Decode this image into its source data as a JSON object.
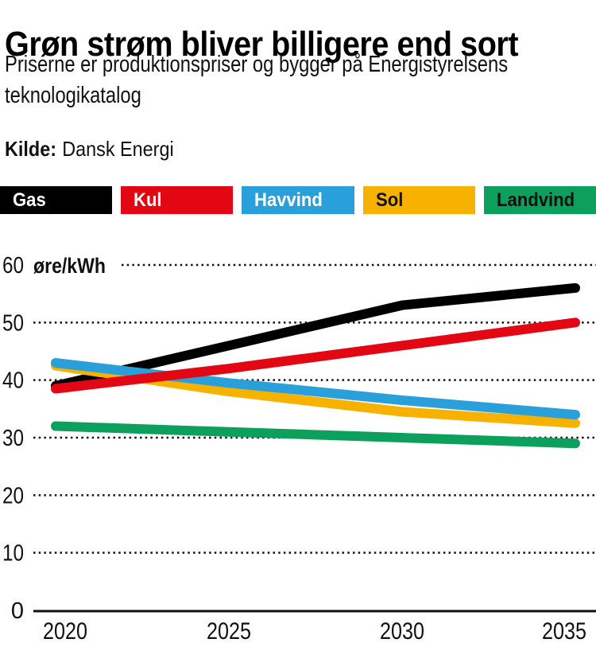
{
  "header": {
    "title": "Grøn strøm bliver billigere end sort",
    "subtitle_line1": "Priserne er produktionspriser og bygger på Energistyrelsens",
    "subtitle_line2": "teknologikatalog",
    "source_label": "Kilde:",
    "source_value": "Dansk Energi"
  },
  "legend": [
    {
      "label": "Gas",
      "color": "#000000",
      "text_color": "#ffffff"
    },
    {
      "label": "Kul",
      "color": "#e30613",
      "text_color": "#ffffff"
    },
    {
      "label": "Havvind",
      "color": "#29a0d9",
      "text_color": "#ffffff"
    },
    {
      "label": "Sol",
      "color": "#f7b200",
      "text_color": "#111111"
    },
    {
      "label": "Landvind",
      "color": "#0ca05c",
      "text_color": "#111111"
    }
  ],
  "chart_data": {
    "type": "line",
    "x": [
      2020,
      2025,
      2030,
      2035
    ],
    "categories": [
      "2020",
      "2025",
      "2030",
      "2035"
    ],
    "unit_label": "øre/kWh",
    "series": [
      {
        "name": "Gas",
        "color": "#000000",
        "values": [
          39,
          46,
          53,
          56
        ]
      },
      {
        "name": "Kul",
        "color": "#e30613",
        "values": [
          38.5,
          42,
          46,
          50
        ]
      },
      {
        "name": "Havvind",
        "color": "#29a0d9",
        "values": [
          43,
          39.5,
          36.5,
          34
        ]
      },
      {
        "name": "Sol",
        "color": "#f7b200",
        "values": [
          42.5,
          38,
          34.5,
          32.5
        ]
      },
      {
        "name": "Landvind",
        "color": "#0ca05c",
        "values": [
          32,
          31,
          30,
          29
        ]
      }
    ],
    "ylim": [
      0,
      60
    ],
    "yticks": [
      0,
      10,
      20,
      30,
      40,
      50,
      60
    ],
    "grid": "dotted-horizontal",
    "legend_position": "top",
    "axis_color": "#111111"
  }
}
